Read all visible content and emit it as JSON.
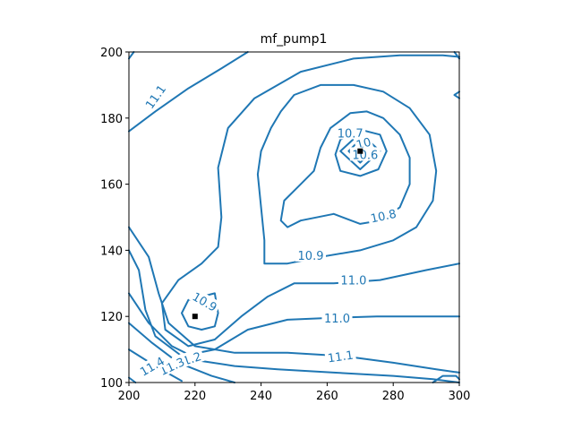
{
  "chart_data": {
    "type": "contour",
    "title": "mf_pump1",
    "xlim": [
      200,
      300
    ],
    "ylim": [
      100,
      200
    ],
    "xticks": [
      "200",
      "220",
      "240",
      "260",
      "280",
      "300"
    ],
    "yticks": [
      "100",
      "120",
      "140",
      "160",
      "180",
      "200"
    ],
    "grid": false,
    "line_color": "#1f77b4",
    "markers": [
      {
        "x": 270,
        "y": 170
      },
      {
        "x": 220,
        "y": 120
      }
    ],
    "levels": [
      {
        "level": "10.6",
        "paths": [
          [
            [
              266.5,
              170
            ],
            [
              270,
              173.5
            ],
            [
              273.5,
              170
            ],
            [
              270,
              166.5
            ],
            [
              266.5,
              170
            ]
          ]
        ]
      },
      {
        "level": "10.65",
        "paths": [
          [
            [
              264,
              170
            ],
            [
              270,
              175.5
            ],
            [
              276,
              170
            ],
            [
              270,
              164.5
            ],
            [
              264,
              170
            ]
          ]
        ]
      },
      {
        "level": "10.7",
        "paths": [
          [
            [
              262.5,
              169
            ],
            [
              264,
              173.5
            ],
            [
              270,
              176.5
            ],
            [
              276,
              175
            ],
            [
              278,
              170
            ],
            [
              275.5,
              164.5
            ],
            [
              270,
              162.5
            ],
            [
              264,
              164
            ],
            [
              262.5,
              169
            ]
          ]
        ]
      },
      {
        "level": "10.8",
        "paths": [
          [
            [
              262,
              151
            ],
            [
              252,
              149
            ],
            [
              248,
              147
            ],
            [
              246,
              149
            ],
            [
              247,
              155
            ],
            [
              252,
              160
            ],
            [
              256,
              164
            ],
            [
              258,
              171
            ],
            [
              261,
              177
            ],
            [
              267,
              181.5
            ],
            [
              272,
              182
            ],
            [
              277,
              180
            ],
            [
              282,
              175
            ],
            [
              285,
              168
            ],
            [
              285,
              160
            ],
            [
              282,
              153
            ],
            [
              276,
              149
            ],
            [
              270,
              148
            ],
            [
              262,
              151
            ]
          ]
        ]
      },
      {
        "level": "10.9",
        "paths": [
          [
            [
              241,
              136
            ],
            [
              248,
              136
            ],
            [
              258,
              138
            ],
            [
              270,
              140
            ],
            [
              280,
              143
            ],
            [
              287,
              147
            ],
            [
              292,
              155
            ],
            [
              293,
              164
            ],
            [
              291,
              175
            ],
            [
              285,
              183
            ],
            [
              277,
              188
            ],
            [
              268,
              190
            ],
            [
              258,
              190
            ],
            [
              250,
              187
            ],
            [
              246,
              182
            ],
            [
              243,
              177
            ],
            [
              240,
              170
            ],
            [
              239,
              163
            ],
            [
              240,
              153
            ],
            [
              241,
              143
            ],
            [
              241,
              136
            ]
          ],
          [
            [
              227,
              121
            ],
            [
              226,
              127
            ],
            [
              222,
              126
            ],
            [
              218,
              125
            ],
            [
              216,
              121
            ],
            [
              218,
              117
            ],
            [
              222,
              116
            ],
            [
              226,
              117
            ],
            [
              227,
              121
            ]
          ]
        ]
      },
      {
        "level": "11.0",
        "paths": [
          [
            [
              300,
              136
            ],
            [
              290,
              134
            ],
            [
              276,
              131
            ],
            [
              262,
              130
            ],
            [
              250,
              130
            ],
            [
              242,
              126
            ],
            [
              234,
              120
            ],
            [
              226,
              113
            ],
            [
              218,
              111
            ],
            [
              211,
              116
            ],
            [
              210,
              124
            ],
            [
              215,
              131
            ],
            [
              222,
              136
            ],
            [
              227,
              141
            ],
            [
              228,
              150
            ],
            [
              227,
              165
            ],
            [
              230,
              177
            ],
            [
              238,
              186
            ],
            [
              252,
              194
            ],
            [
              268,
              198
            ],
            [
              282,
              199
            ],
            [
              295,
              199
            ],
            [
              300,
              198.5
            ]
          ]
        ]
      },
      {
        "level": "11.0",
        "paths": [
          [
            [
              300,
              120
            ],
            [
              290,
              120
            ],
            [
              275,
              120
            ],
            [
              260,
              119.5
            ],
            [
              248,
              119
            ],
            [
              236,
              116
            ],
            [
              226,
              110
            ],
            [
              216,
              108
            ],
            [
              208,
              114
            ],
            [
              205,
              122
            ],
            [
              203,
              134
            ],
            [
              200,
              140
            ]
          ]
        ]
      },
      {
        "level": "11.1",
        "paths": [
          [
            [
              200,
              147
            ],
            [
              206,
              138
            ],
            [
              209,
              127
            ],
            [
              212,
              118
            ],
            [
              220,
              111
            ],
            [
              232,
              109
            ],
            [
              248,
              109
            ],
            [
              265,
              108
            ],
            [
              280,
              106
            ],
            [
              293,
              104
            ],
            [
              300,
              103
            ]
          ],
          [
            [
              200,
              176
            ],
            [
              208,
              182
            ],
            [
              218,
              189
            ],
            [
              228,
              195
            ],
            [
              236,
              200
            ]
          ]
        ]
      },
      {
        "level": "11.2",
        "paths": [
          [
            [
              200,
              127
            ],
            [
              206,
              118
            ],
            [
              213,
              111
            ],
            [
              222,
              106.5
            ],
            [
              232,
              105
            ],
            [
              245,
              104
            ],
            [
              262,
              103
            ],
            [
              280,
              102
            ],
            [
              292,
              101
            ],
            [
              300,
              100
            ]
          ]
        ]
      },
      {
        "level": "11.3",
        "paths": [
          [
            [
              200,
              118
            ],
            [
              207,
              112
            ],
            [
              215,
              106
            ],
            [
              225,
              102
            ],
            [
              232,
              100
            ]
          ]
        ]
      },
      {
        "level": "11.4",
        "paths": [
          [
            [
              200,
              110
            ],
            [
              208,
              105
            ],
            [
              216,
              100.5
            ]
          ]
        ]
      },
      {
        "level": "",
        "paths": [
          [
            [
              200,
              198
            ],
            [
              201.5,
              200
            ]
          ],
          [
            [
              298.5,
              200
            ],
            [
              300,
              198
            ]
          ],
          [
            [
              300,
              186
            ],
            [
              298.5,
              187
            ],
            [
              300,
              188
            ]
          ],
          [
            [
              292,
              100
            ],
            [
              295,
              102
            ],
            [
              299,
              102
            ],
            [
              300,
              101
            ]
          ],
          [
            [
              200,
              101.5
            ],
            [
              202,
              100
            ]
          ]
        ]
      }
    ],
    "contour_labels": [
      {
        "text": "11.1",
        "x": 208,
        "y": 186.5,
        "rotation": -55
      },
      {
        "text": "10.7",
        "x": 267,
        "y": 175.5,
        "rotation": 0
      },
      {
        "text": "10",
        "x": 271,
        "y": 172.5,
        "rotation": -15
      },
      {
        "text": "10.6",
        "x": 271.5,
        "y": 169,
        "rotation": 0
      },
      {
        "text": "10.8",
        "x": 277,
        "y": 150.5,
        "rotation": -12
      },
      {
        "text": "10.9",
        "x": 255,
        "y": 138.5,
        "rotation": 0
      },
      {
        "text": "11.0",
        "x": 268,
        "y": 131,
        "rotation": 0
      },
      {
        "text": "10.9",
        "x": 223,
        "y": 124.5,
        "rotation": 30
      },
      {
        "text": "11.0",
        "x": 263,
        "y": 119.5,
        "rotation": 0
      },
      {
        "text": "11.1",
        "x": 264,
        "y": 108,
        "rotation": -8
      },
      {
        "text": "11.2",
        "x": 218,
        "y": 107,
        "rotation": -18
      },
      {
        "text": "11.3",
        "x": 213,
        "y": 105,
        "rotation": -25
      },
      {
        "text": "11.4",
        "x": 207,
        "y": 105,
        "rotation": -30
      }
    ]
  }
}
